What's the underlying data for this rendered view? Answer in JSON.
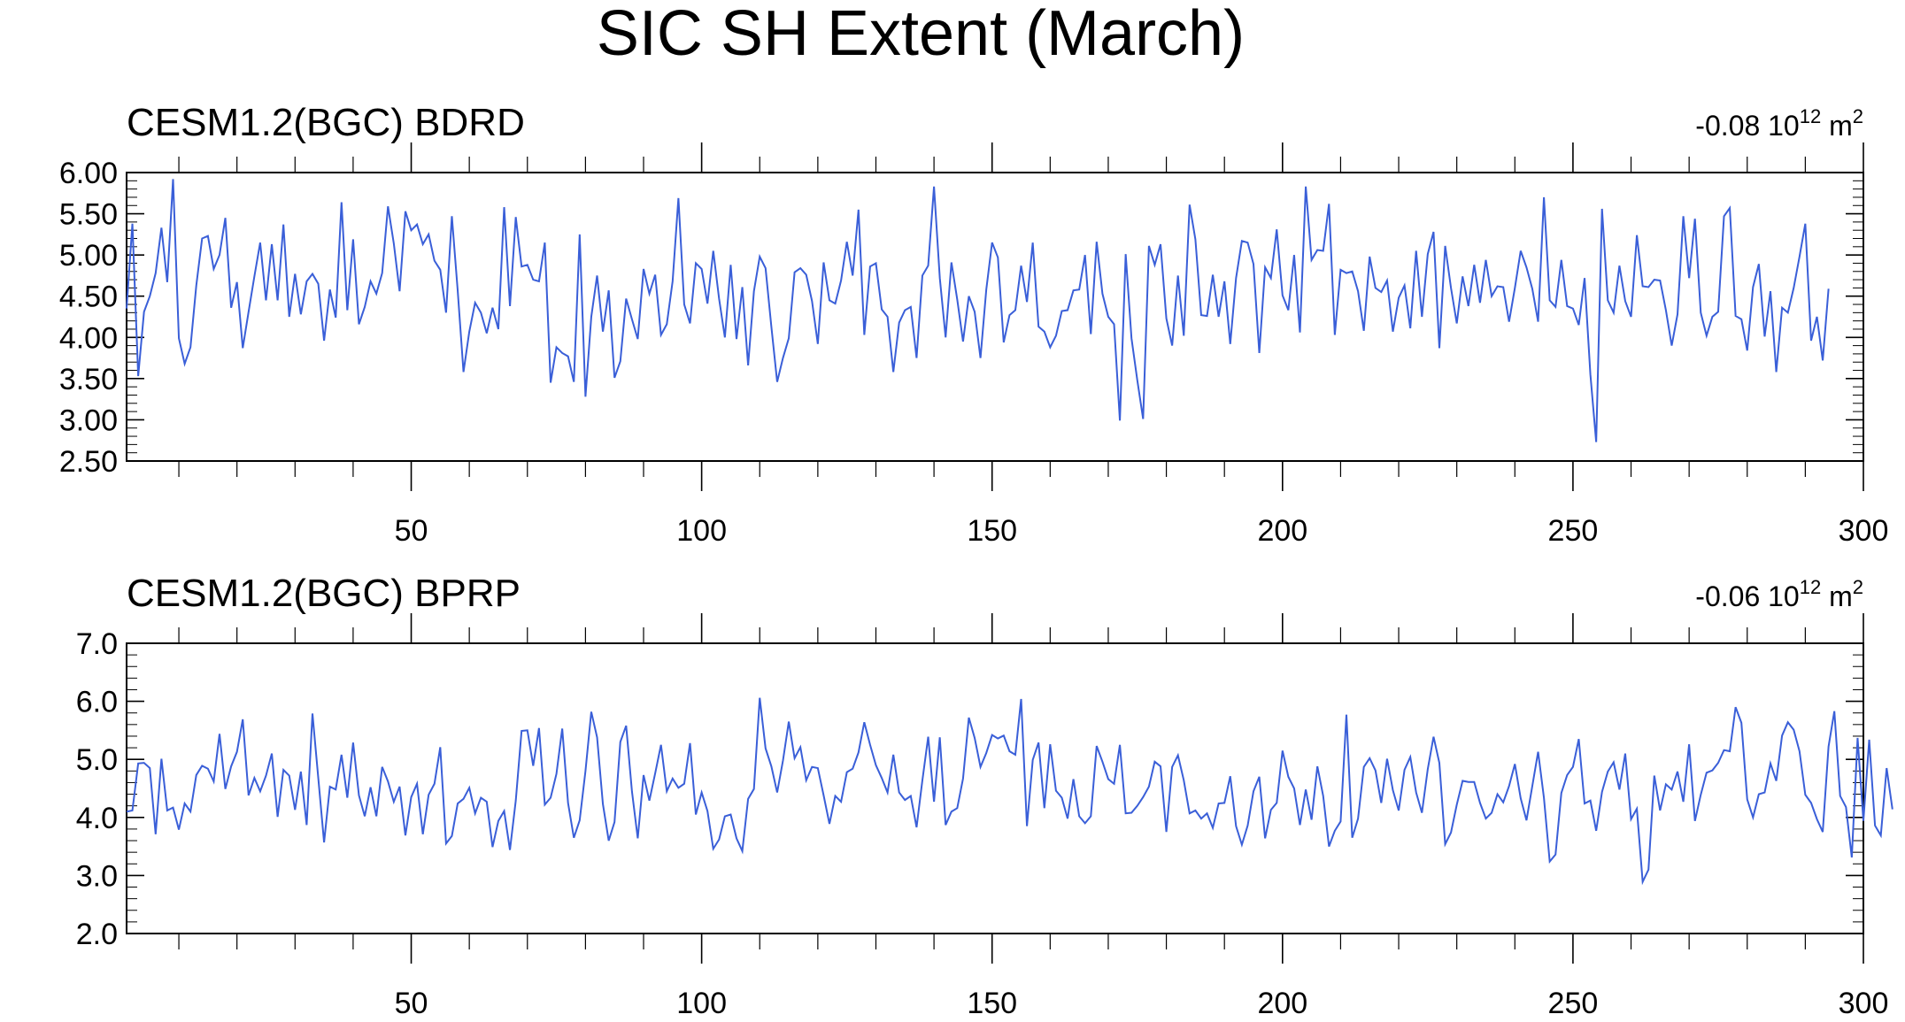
{
  "figure": {
    "title": "SIC SH Extent (March)"
  },
  "chart_data": [
    {
      "type": "line",
      "title": "CESM1.2(BGC) BDRD",
      "trend_value": "-0.08",
      "trend_base": "10",
      "trend_exp": "12",
      "trend_unit": "m",
      "trend_unit_exp": "2",
      "line_color": "#3a5fd8",
      "xlim": [
        1,
        300
      ],
      "ylim": [
        2.5,
        6.0
      ],
      "xticks": [
        50,
        100,
        150,
        200,
        250,
        300
      ],
      "xtick_labels": [
        "50",
        "100",
        "150",
        "200",
        "250",
        "300"
      ],
      "yticks": [
        2.5,
        3.0,
        3.5,
        4.0,
        4.5,
        5.0,
        5.5,
        6.0
      ],
      "ytick_labels": [
        "2.50",
        "3.00",
        "3.50",
        "4.00",
        "4.50",
        "5.00",
        "5.50",
        "6.00"
      ],
      "series": [
        {
          "values": [
            4.35,
            5.38,
            3.53,
            4.31,
            4.5,
            4.78,
            5.33,
            4.67,
            5.92,
            3.99,
            3.68,
            3.88,
            4.63,
            5.2,
            5.23,
            4.83,
            5.0,
            5.45,
            4.36,
            4.67,
            3.87,
            4.31,
            4.74,
            5.15,
            4.45,
            5.13,
            4.45,
            5.37,
            4.25,
            4.77,
            4.28,
            4.68,
            4.77,
            4.65,
            3.96,
            4.58,
            4.24,
            5.64,
            4.33,
            5.19,
            4.16,
            4.37,
            4.68,
            4.53,
            4.78,
            5.59,
            5.14,
            4.56,
            5.53,
            5.3,
            5.37,
            5.13,
            5.25,
            4.93,
            4.82,
            4.3,
            5.47,
            4.57,
            3.58,
            4.07,
            4.42,
            4.3,
            4.05,
            4.36,
            4.1,
            5.58,
            4.38,
            5.46,
            4.86,
            4.88,
            4.7,
            4.68,
            5.15,
            3.45,
            3.88,
            3.81,
            3.77,
            3.46,
            5.25,
            3.28,
            4.25,
            4.75,
            4.07,
            4.57,
            3.51,
            3.71,
            4.47,
            4.22,
            3.98,
            4.83,
            4.53,
            4.76,
            4.03,
            4.16,
            4.68,
            5.69,
            4.4,
            4.17,
            4.9,
            4.83,
            4.41,
            5.05,
            4.47,
            4.0,
            4.88,
            3.98,
            4.61,
            3.66,
            4.56,
            4.98,
            4.84,
            4.13,
            3.46,
            3.75,
            3.99,
            4.79,
            4.84,
            4.76,
            4.44,
            3.92,
            4.91,
            4.45,
            4.41,
            4.69,
            5.16,
            4.75,
            5.55,
            4.03,
            4.86,
            4.9,
            4.34,
            4.25,
            3.58,
            4.18,
            4.33,
            4.37,
            3.75,
            4.75,
            4.87,
            5.83,
            4.72,
            4.0,
            4.91,
            4.46,
            3.95,
            4.5,
            4.31,
            3.75,
            4.58,
            5.15,
            4.97,
            3.94,
            4.27,
            4.33,
            4.87,
            4.43,
            5.15,
            4.13,
            4.07,
            3.88,
            4.02,
            4.32,
            4.33,
            4.57,
            4.58,
            5.0,
            4.04,
            5.16,
            4.53,
            4.25,
            4.16,
            2.99,
            5.01,
            3.99,
            3.48,
            3.01,
            5.11,
            4.88,
            5.13,
            4.23,
            3.9,
            4.75,
            4.02,
            5.61,
            5.19,
            4.27,
            4.26,
            4.76,
            4.25,
            4.68,
            3.92,
            4.72,
            5.17,
            5.15,
            4.89,
            3.81,
            4.85,
            4.72,
            5.31,
            4.51,
            4.33,
            5.0,
            4.06,
            5.83,
            4.94,
            5.06,
            5.05,
            5.62,
            4.03,
            4.82,
            4.78,
            4.8,
            4.56,
            4.08,
            4.98,
            4.6,
            4.55,
            4.69,
            4.07,
            4.48,
            4.63,
            4.11,
            5.05,
            4.25,
            5.01,
            5.28,
            3.87,
            5.11,
            4.6,
            4.17,
            4.74,
            4.38,
            4.88,
            4.42,
            4.94,
            4.5,
            4.62,
            4.61,
            4.19,
            4.6,
            5.05,
            4.85,
            4.59,
            4.19,
            5.7,
            4.45,
            4.37,
            4.94,
            4.38,
            4.35,
            4.15,
            4.72,
            3.55,
            2.73,
            5.56,
            4.45,
            4.3,
            4.87,
            4.44,
            4.25,
            5.24,
            4.62,
            4.61,
            4.7,
            4.69,
            4.33,
            3.9,
            4.28,
            5.47,
            4.72,
            5.44,
            4.3,
            4.02,
            4.25,
            4.31,
            5.47,
            5.57,
            4.26,
            4.22,
            3.84,
            4.61,
            4.89,
            4.01,
            4.56,
            3.58,
            4.36,
            4.3,
            4.6,
            4.98,
            5.38,
            3.96,
            4.25,
            3.72,
            4.59
          ]
        }
      ]
    },
    {
      "type": "line",
      "title": "CESM1.2(BGC) BPRP",
      "trend_value": "-0.06",
      "trend_base": "10",
      "trend_exp": "12",
      "trend_unit": "m",
      "trend_unit_exp": "2",
      "line_color": "#3a5fd8",
      "xlim": [
        1,
        300
      ],
      "ylim": [
        2.0,
        7.0
      ],
      "xticks": [
        50,
        100,
        150,
        200,
        250,
        300
      ],
      "xtick_labels": [
        "50",
        "100",
        "150",
        "200",
        "250",
        "300"
      ],
      "yticks": [
        2.0,
        3.0,
        4.0,
        5.0,
        6.0,
        7.0
      ],
      "ytick_labels": [
        "2.0",
        "3.0",
        "4.0",
        "5.0",
        "6.0",
        "7.0"
      ],
      "series": [
        {
          "values": [
            4.1,
            4.12,
            4.93,
            4.94,
            4.85,
            3.71,
            5.01,
            4.12,
            4.17,
            3.79,
            4.24,
            4.1,
            4.73,
            4.89,
            4.84,
            4.62,
            5.44,
            4.49,
            4.88,
            5.13,
            5.69,
            4.38,
            4.68,
            4.45,
            4.72,
            5.1,
            4.01,
            4.82,
            4.72,
            4.13,
            4.79,
            3.87,
            5.79,
            4.68,
            3.57,
            4.53,
            4.48,
            5.08,
            4.34,
            5.29,
            4.38,
            4.02,
            4.52,
            4.02,
            4.87,
            4.62,
            4.27,
            4.53,
            3.69,
            4.35,
            4.58,
            3.71,
            4.39,
            4.58,
            5.21,
            3.55,
            3.68,
            4.24,
            4.32,
            4.51,
            4.07,
            4.34,
            4.27,
            3.49,
            3.94,
            4.11,
            3.44,
            4.29,
            5.49,
            5.5,
            4.89,
            5.54,
            4.22,
            4.34,
            4.75,
            5.53,
            4.25,
            3.65,
            3.95,
            4.8,
            5.82,
            5.38,
            4.23,
            3.6,
            3.92,
            5.3,
            5.58,
            4.45,
            3.64,
            4.73,
            4.29,
            4.76,
            5.25,
            4.45,
            4.67,
            4.51,
            4.58,
            5.28,
            4.05,
            4.43,
            4.11,
            3.46,
            3.62,
            4.02,
            4.05,
            3.64,
            3.42,
            4.32,
            4.49,
            6.06,
            5.19,
            4.88,
            4.43,
            4.98,
            5.65,
            5.02,
            5.21,
            4.64,
            4.87,
            4.85,
            4.38,
            3.89,
            4.37,
            4.27,
            4.78,
            4.84,
            5.12,
            5.64,
            5.25,
            4.9,
            4.68,
            4.43,
            5.08,
            4.43,
            4.3,
            4.37,
            3.83,
            4.64,
            5.39,
            4.27,
            5.38,
            3.87,
            4.1,
            4.16,
            4.67,
            5.72,
            5.37,
            4.87,
            5.11,
            5.42,
            5.36,
            5.41,
            5.14,
            5.08,
            6.04,
            3.85,
            4.99,
            5.29,
            4.16,
            5.26,
            4.46,
            4.34,
            3.98,
            4.66,
            4.02,
            3.9,
            4.02,
            5.23,
            4.96,
            4.66,
            4.58,
            5.25,
            4.07,
            4.08,
            4.2,
            4.35,
            4.53,
            4.96,
            4.88,
            3.75,
            4.87,
            5.07,
            4.64,
            4.07,
            4.12,
            3.98,
            4.07,
            3.82,
            4.24,
            4.25,
            4.71,
            3.85,
            3.53,
            3.86,
            4.45,
            4.7,
            3.64,
            4.13,
            4.25,
            5.15,
            4.7,
            4.5,
            3.87,
            4.48,
            3.96,
            4.88,
            4.37,
            3.5,
            3.77,
            3.93,
            5.77,
            3.65,
            3.98,
            4.87,
            5.02,
            4.81,
            4.25,
            5.01,
            4.47,
            4.12,
            4.82,
            5.04,
            4.43,
            4.08,
            4.83,
            5.39,
            4.94,
            3.54,
            3.74,
            4.22,
            4.63,
            4.61,
            4.61,
            4.25,
            3.98,
            4.08,
            4.4,
            4.26,
            4.54,
            4.92,
            4.33,
            3.95,
            4.54,
            5.13,
            4.34,
            3.24,
            3.36,
            4.42,
            4.73,
            4.87,
            5.35,
            4.24,
            4.29,
            3.77,
            4.44,
            4.79,
            4.95,
            4.48,
            5.1,
            3.97,
            4.15,
            2.89,
            3.1,
            4.72,
            4.12,
            4.57,
            4.48,
            4.79,
            4.27,
            5.26,
            3.94,
            4.39,
            4.77,
            4.81,
            4.94,
            5.16,
            5.14,
            5.9,
            5.63,
            4.31,
            4.0,
            4.4,
            4.43,
            4.93,
            4.63,
            5.41,
            5.64,
            5.51,
            5.14,
            4.39,
            4.25,
            3.97,
            3.75,
            5.22,
            5.83,
            4.37,
            4.18,
            3.31,
            5.37,
            3.94,
            5.34,
            3.86,
            3.69,
            4.85,
            4.14
          ]
        }
      ]
    }
  ]
}
